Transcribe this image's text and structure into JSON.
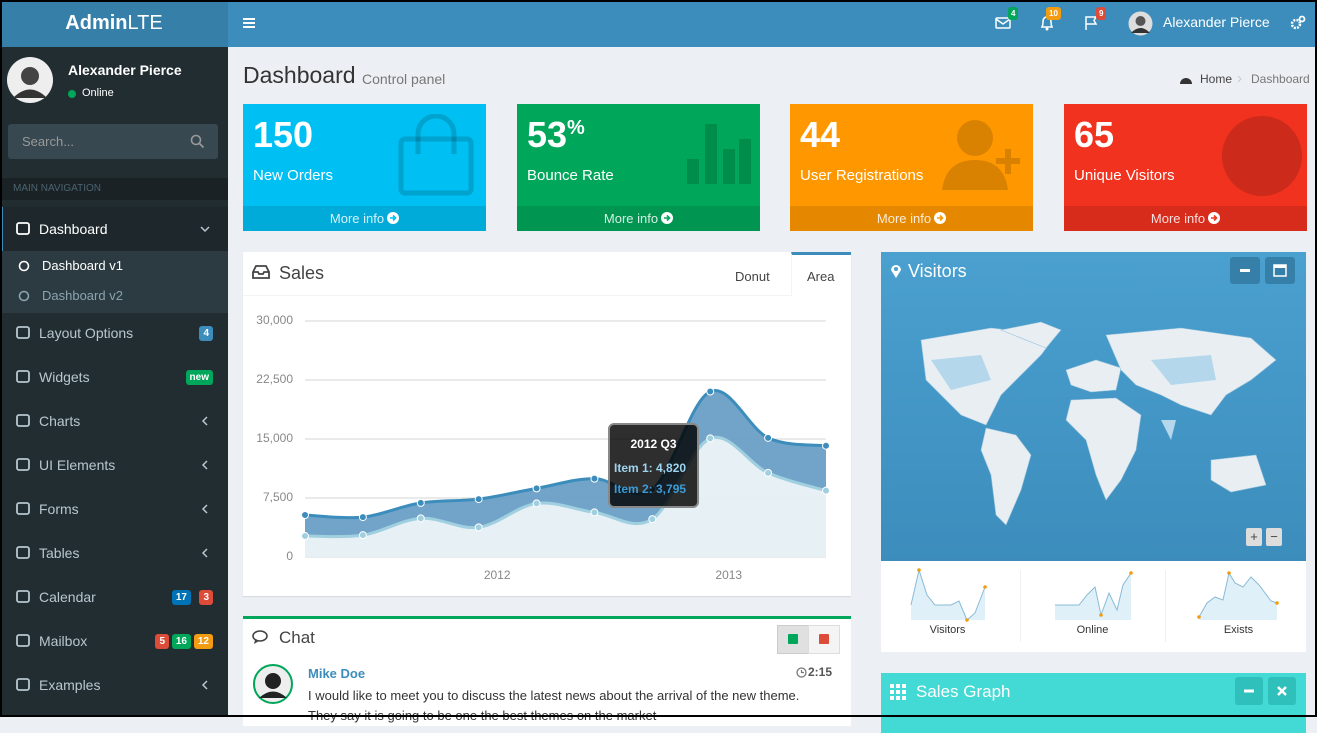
{
  "header": {
    "logo_bold": "Admin",
    "logo_light": "LTE",
    "badges": [
      4,
      10,
      9
    ],
    "user": "Alexander Pierce"
  },
  "sidebar": {
    "user": "Alexander Pierce",
    "status": "Online",
    "search_placeholder": "Search...",
    "section": "MAIN NAVIGATION",
    "menu": [
      {
        "label": "Dashboard",
        "children": [
          "Dashboard v1",
          "Dashboard v2"
        ]
      },
      {
        "label": "Layout Options",
        "badges": [
          {
            "text": 4,
            "color": "#3c8dbc"
          }
        ]
      },
      {
        "label": "Widgets",
        "badges": [
          {
            "text": "new",
            "color": "#00a65a"
          }
        ]
      },
      {
        "label": "Charts"
      },
      {
        "label": "UI Elements"
      },
      {
        "label": "Forms"
      },
      {
        "label": "Tables"
      },
      {
        "label": "Calendar",
        "badges": [
          {
            "text": 17,
            "color": "#0073b7"
          },
          {
            "text": 3,
            "color": "#dd4b39"
          }
        ]
      },
      {
        "label": "Mailbox",
        "badges": [
          {
            "text": 5,
            "color": "#dd4b39"
          },
          {
            "text": 16,
            "color": "#00a65a"
          },
          {
            "text": 12,
            "color": "#f39c12"
          }
        ]
      },
      {
        "label": "Examples"
      }
    ]
  },
  "content": {
    "title": "Dashboard",
    "subtitle": "Control panel",
    "breadcrumb": [
      "Home",
      "Dashboard"
    ]
  },
  "info_boxes": [
    {
      "value": 150,
      "label": "New Orders",
      "link": "More info",
      "color": "#00bff3"
    },
    {
      "value": 53,
      "unit": "%",
      "label": "Bounce Rate",
      "link": "More info",
      "color": "#00a65a"
    },
    {
      "value": 44,
      "label": "User Registrations",
      "link": "More info",
      "color": "#ff9800"
    },
    {
      "value": 65,
      "label": "Unique Visitors",
      "link": "More info",
      "color": "#f0321f"
    }
  ],
  "sales": {
    "title": "Sales",
    "tabs": [
      "Donut",
      "Area"
    ],
    "tooltip": {
      "title": "2012 Q3",
      "lines": [
        "Item 1: 4,820",
        "Item 2: 3,795"
      ]
    }
  },
  "chart_data": {
    "type": "area",
    "stacked": true,
    "x": [
      2011.17,
      2011.42,
      2011.67,
      2011.92,
      2012.17,
      2012.42,
      2012.67,
      2012.92,
      2013.17,
      2013.42
    ],
    "xlim": [
      2011.17,
      2013.42
    ],
    "xticks": [
      2012,
      2013
    ],
    "ylim": [
      0,
      30000
    ],
    "yticks": [
      0,
      {
        "value": 7500,
        "label": "7,500"
      },
      {
        "value": 15000,
        "label": "15,000"
      },
      {
        "value": 22500,
        "label": "22,500"
      },
      {
        "value": 30000,
        "label": "30,000"
      }
    ],
    "grid": true,
    "series": [
      {
        "name": "Item 1",
        "color": "#a0d0e0",
        "values": [
          2666,
          2778,
          4912,
          3767,
          6810,
          5670,
          4820,
          15073,
          10687,
          8432
        ]
      },
      {
        "name": "Item 2",
        "color": "#3c8dbc",
        "values": [
          2666,
          2294,
          1969,
          3597,
          1914,
          4293,
          3795,
          5967,
          4460,
          5713
        ]
      }
    ]
  },
  "visitors": {
    "title": "Visitors",
    "map_controls": [
      "+",
      "−"
    ],
    "sparklines": [
      "Visitors",
      "Online",
      "Exists"
    ]
  },
  "chat": {
    "title": "Chat",
    "messages": [
      {
        "name": "Mike Doe",
        "time": "2:15",
        "text": "I would like to meet you to discuss the latest news about the arrival of the new theme. They say it is going to be one the best themes on the market"
      }
    ]
  },
  "sales_graph": {
    "title": "Sales Graph"
  }
}
